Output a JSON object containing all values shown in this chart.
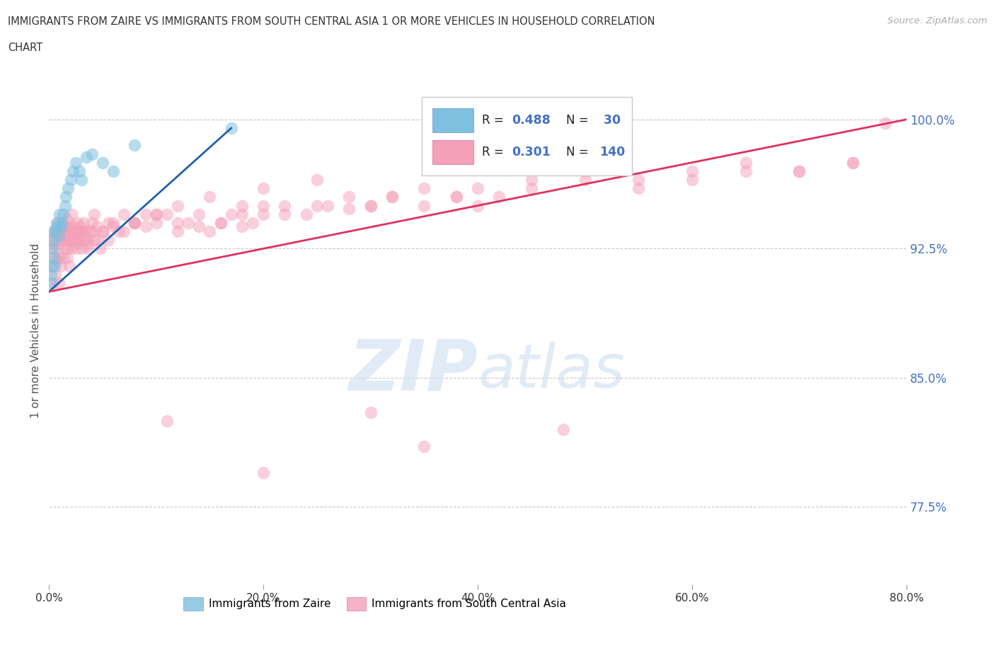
{
  "title_line1": "IMMIGRANTS FROM ZAIRE VS IMMIGRANTS FROM SOUTH CENTRAL ASIA 1 OR MORE VEHICLES IN HOUSEHOLD CORRELATION",
  "title_line2": "CHART",
  "source": "Source: ZipAtlas.com",
  "ylabel": "1 or more Vehicles in Household",
  "xmin": 0.0,
  "xmax": 80.0,
  "ymin": 73.0,
  "ymax": 102.5,
  "ytick_values": [
    77.5,
    85.0,
    92.5,
    100.0
  ],
  "xtick_values": [
    0.0,
    20.0,
    40.0,
    60.0,
    80.0
  ],
  "grid_color": "#c8c8c8",
  "background_color": "#ffffff",
  "zaire_color": "#7fbfdf",
  "sca_color": "#f4a0b8",
  "zaire_line_color": "#2060b0",
  "sca_line_color": "#e03060",
  "watermark_color": "#ddeeff",
  "tick_color": "#aaaaaa",
  "ytick_label_color": "#4472c4",
  "legend_border_color": "#cccccc",
  "legend_text_color": "#111111",
  "legend_R_color": "#4472c4",
  "legend_N_color": "#4472c4",
  "zaire_x": [
    0.15,
    0.2,
    0.25,
    0.3,
    0.35,
    0.4,
    0.45,
    0.5,
    0.6,
    0.7,
    0.8,
    0.9,
    1.0,
    1.1,
    1.2,
    1.3,
    1.5,
    1.6,
    1.8,
    2.0,
    2.2,
    2.5,
    2.8,
    3.0,
    3.5,
    4.0,
    5.0,
    6.0,
    8.0,
    17.0
  ],
  "zaire_y": [
    90.5,
    91.0,
    91.5,
    92.5,
    93.0,
    93.5,
    92.0,
    91.5,
    93.5,
    93.8,
    94.0,
    93.2,
    94.5,
    93.8,
    94.0,
    94.5,
    95.0,
    95.5,
    96.0,
    96.5,
    97.0,
    97.5,
    97.0,
    96.5,
    97.8,
    98.0,
    97.5,
    97.0,
    98.5,
    99.5
  ],
  "sca_x": [
    0.2,
    0.3,
    0.4,
    0.5,
    0.6,
    0.7,
    0.8,
    0.9,
    1.0,
    1.1,
    1.2,
    1.3,
    1.4,
    1.5,
    1.6,
    1.7,
    1.8,
    1.9,
    2.0,
    2.1,
    2.2,
    2.3,
    2.4,
    2.5,
    2.6,
    2.7,
    2.8,
    2.9,
    3.0,
    3.2,
    3.4,
    3.6,
    3.8,
    4.0,
    4.2,
    4.5,
    5.0,
    5.5,
    6.0,
    7.0,
    8.0,
    9.0,
    10.0,
    11.0,
    12.0,
    13.0,
    14.0,
    15.0,
    16.0,
    17.0,
    18.0,
    19.0,
    20.0,
    22.0,
    24.0,
    26.0,
    28.0,
    30.0,
    32.0,
    35.0,
    38.0,
    40.0,
    42.0,
    45.0,
    50.0,
    55.0,
    60.0,
    65.0,
    70.0,
    75.0,
    78.0,
    0.3,
    0.5,
    0.7,
    0.8,
    1.0,
    1.2,
    1.4,
    1.6,
    1.8,
    2.0,
    2.2,
    2.5,
    3.0,
    3.5,
    4.0,
    4.5,
    5.0,
    6.0,
    7.0,
    8.0,
    9.0,
    10.0,
    12.0,
    14.0,
    16.0,
    18.0,
    20.0,
    22.0,
    25.0,
    28.0,
    30.0,
    32.0,
    35.0,
    38.0,
    40.0,
    45.0,
    50.0,
    55.0,
    60.0,
    65.0,
    70.0,
    75.0,
    0.4,
    0.6,
    0.9,
    1.1,
    1.3,
    1.5,
    1.7,
    1.9,
    2.1,
    2.3,
    2.6,
    2.8,
    3.1,
    3.3,
    3.7,
    4.2,
    4.8,
    5.5,
    6.5,
    8.0,
    10.0,
    12.0,
    15.0,
    18.0,
    20.0,
    25.0,
    11.0,
    20.0,
    30.0,
    35.0,
    48.0
  ],
  "sca_y": [
    92.5,
    93.0,
    92.8,
    93.5,
    93.2,
    94.0,
    93.5,
    92.8,
    93.5,
    93.0,
    93.8,
    94.0,
    93.5,
    93.2,
    93.8,
    94.2,
    93.5,
    93.0,
    93.8,
    94.5,
    93.2,
    93.8,
    93.5,
    93.0,
    94.0,
    93.5,
    93.2,
    93.8,
    93.5,
    94.0,
    93.5,
    92.8,
    93.5,
    94.0,
    94.5,
    93.8,
    93.5,
    94.0,
    93.8,
    94.5,
    94.0,
    94.5,
    94.0,
    94.5,
    93.5,
    94.0,
    93.8,
    93.5,
    94.0,
    94.5,
    93.8,
    94.0,
    94.5,
    95.0,
    94.5,
    95.0,
    94.8,
    95.0,
    95.5,
    95.0,
    95.5,
    95.0,
    95.5,
    96.0,
    96.5,
    96.0,
    96.5,
    97.0,
    97.0,
    97.5,
    99.8,
    91.5,
    92.0,
    91.8,
    92.5,
    92.0,
    93.0,
    93.5,
    93.0,
    92.5,
    93.0,
    93.5,
    92.8,
    93.5,
    93.0,
    93.5,
    93.0,
    93.5,
    94.0,
    93.5,
    94.0,
    93.8,
    94.5,
    94.0,
    94.5,
    94.0,
    94.5,
    95.0,
    94.5,
    95.0,
    95.5,
    95.0,
    95.5,
    96.0,
    95.5,
    96.0,
    96.5,
    97.0,
    96.5,
    97.0,
    97.5,
    97.0,
    97.5,
    90.5,
    91.0,
    90.5,
    91.5,
    92.0,
    92.5,
    92.0,
    91.5,
    92.5,
    93.0,
    92.5,
    93.0,
    92.5,
    93.0,
    92.5,
    93.0,
    92.5,
    93.0,
    93.5,
    94.0,
    94.5,
    95.0,
    95.5,
    95.0,
    96.0,
    96.5,
    82.5,
    79.5,
    83.0,
    81.0,
    82.0
  ]
}
